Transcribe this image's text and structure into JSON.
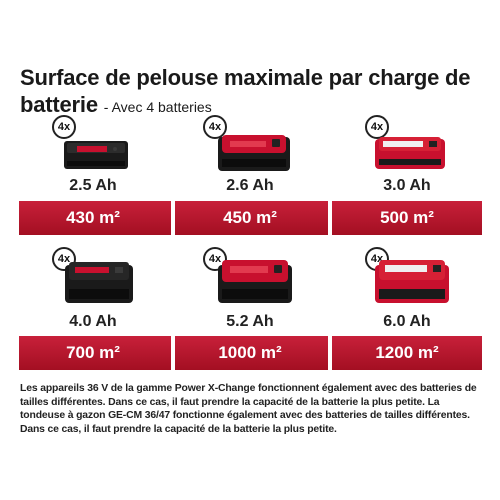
{
  "title_main": "Surface de pelouse maximale par charge de batterie",
  "title_sub": "- Avec 4 batteries",
  "badge_text": "4x",
  "colors": {
    "bar_red": "#b5162b",
    "battery_red": "#c8102e",
    "battery_black": "#1a1a1a"
  },
  "rows": [
    {
      "items": [
        {
          "capacity": "2.5 Ah",
          "area": "430 m²"
        },
        {
          "capacity": "2.6 Ah",
          "area": "450 m²"
        },
        {
          "capacity": "3.0 Ah",
          "area": "500 m²"
        }
      ]
    },
    {
      "items": [
        {
          "capacity": "4.0 Ah",
          "area": "700 m²"
        },
        {
          "capacity": "5.2 Ah",
          "area": "1000 m²"
        },
        {
          "capacity": "6.0 Ah",
          "area": "1200 m²"
        }
      ]
    }
  ],
  "footnote": "Les appareils 36 V de la gamme Power X-Change fonctionnent également avec des batteries de tailles différentes. Dans ce cas, il faut prendre la capacité de la batterie la plus petite. La tondeuse à gazon GE-CM 36/47 fonctionne également avec des batteries de tailles différentes. Dans ce cas, il faut prendre la capacité de la batterie la plus petite."
}
